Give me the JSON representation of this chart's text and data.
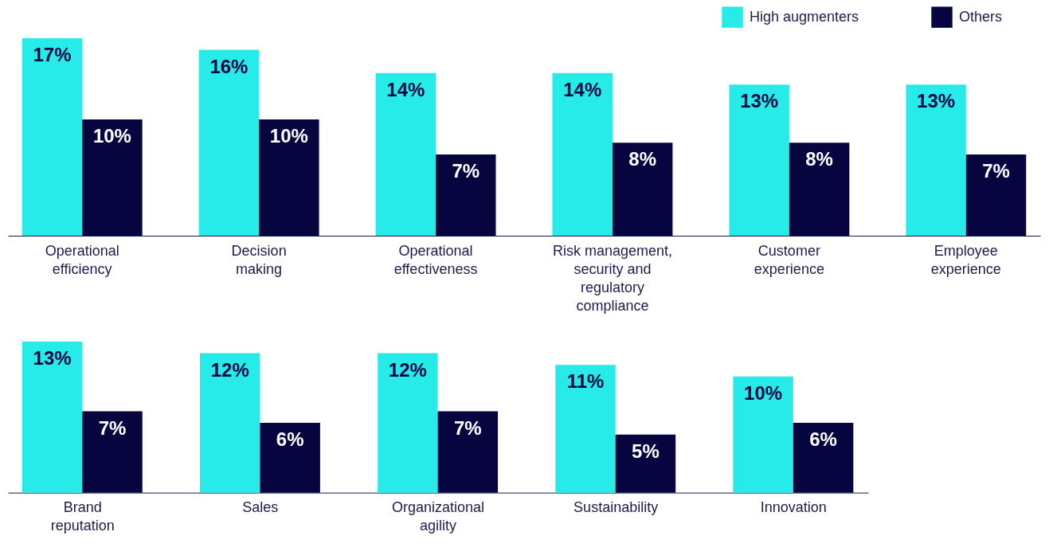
{
  "chart_data": [
    {
      "type": "bar",
      "categories": [
        "Operational efficiency",
        "Decision making",
        "Operational effectiveness",
        "Risk management, security and regulatory compliance",
        "Customer experience",
        "Employee experience"
      ],
      "series": [
        {
          "name": "High augmenters",
          "color": "#26ebe8",
          "values": [
            17,
            16,
            14,
            14,
            13,
            13
          ],
          "value_labels": [
            "17%",
            "16%",
            "14%",
            "14%",
            "13%",
            "13%"
          ]
        },
        {
          "name": "Others",
          "color": "#06053f",
          "values": [
            10,
            10,
            7,
            8,
            8,
            7
          ],
          "value_labels": [
            "10%",
            "10%",
            "7%",
            "8%",
            "8%",
            "7%"
          ]
        }
      ],
      "legend": "top right",
      "grid": false
    },
    {
      "type": "bar",
      "categories": [
        "Brand reputation",
        "Sales",
        "Organizational agility",
        "Sustainability",
        "Innovation"
      ],
      "series": [
        {
          "color": "#26ebe8",
          "values": [
            13,
            12,
            12,
            11,
            10
          ],
          "value_labels": [
            "13%",
            "12%",
            "12%",
            "11%",
            "10%"
          ]
        },
        {
          "color": "#06053f",
          "values": [
            7,
            6,
            7,
            5,
            6
          ],
          "value_labels": [
            "7%",
            "6%",
            "7%",
            "5%",
            "6%"
          ]
        }
      ],
      "grid": false
    }
  ]
}
